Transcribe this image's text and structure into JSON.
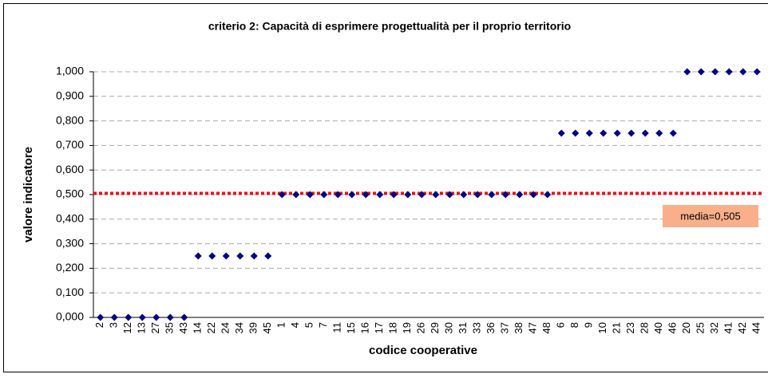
{
  "chart_data": {
    "type": "scatter",
    "title": "criterio 2: Capacità di esprimere progettualità per il proprio territorio",
    "x_label": "codice cooperative",
    "y_label": "valore indicatore",
    "categories": [
      "2",
      "3",
      "12",
      "13",
      "27",
      "35",
      "43",
      "14",
      "22",
      "24",
      "34",
      "39",
      "45",
      "1",
      "4",
      "5",
      "7",
      "11",
      "15",
      "16",
      "17",
      "18",
      "19",
      "26",
      "29",
      "30",
      "31",
      "33",
      "36",
      "37",
      "38",
      "47",
      "48",
      "6",
      "8",
      "9",
      "10",
      "21",
      "23",
      "28",
      "40",
      "46",
      "20",
      "25",
      "32",
      "41",
      "42",
      "44"
    ],
    "values": [
      0,
      0,
      0,
      0,
      0,
      0,
      0,
      0.25,
      0.25,
      0.25,
      0.25,
      0.25,
      0.25,
      0.5,
      0.5,
      0.5,
      0.5,
      0.5,
      0.5,
      0.5,
      0.5,
      0.5,
      0.5,
      0.5,
      0.5,
      0.5,
      0.5,
      0.5,
      0.5,
      0.5,
      0.5,
      0.5,
      0.5,
      0.75,
      0.75,
      0.75,
      0.75,
      0.75,
      0.75,
      0.75,
      0.75,
      0.75,
      1,
      1,
      1,
      1,
      1,
      1
    ],
    "color": "#000080",
    "ylim": [
      0,
      1
    ],
    "yticks": [
      {
        "value": 0,
        "label": "0,000"
      },
      {
        "value": 0.1,
        "label": "0,100"
      },
      {
        "value": 0.2,
        "label": "0,200"
      },
      {
        "value": 0.3,
        "label": "0,300"
      },
      {
        "value": 0.4,
        "label": "0,400"
      },
      {
        "value": 0.5,
        "label": "0,500"
      },
      {
        "value": 0.6,
        "label": "0,600"
      },
      {
        "value": 0.7,
        "label": "0,700"
      },
      {
        "value": 0.8,
        "label": "0,800"
      },
      {
        "value": 0.9,
        "label": "0,900"
      },
      {
        "value": 1,
        "label": "1,000"
      }
    ],
    "grid": true,
    "mean_line": {
      "value": 0.505,
      "label": "media=0,505",
      "color": "#e8101a"
    }
  }
}
